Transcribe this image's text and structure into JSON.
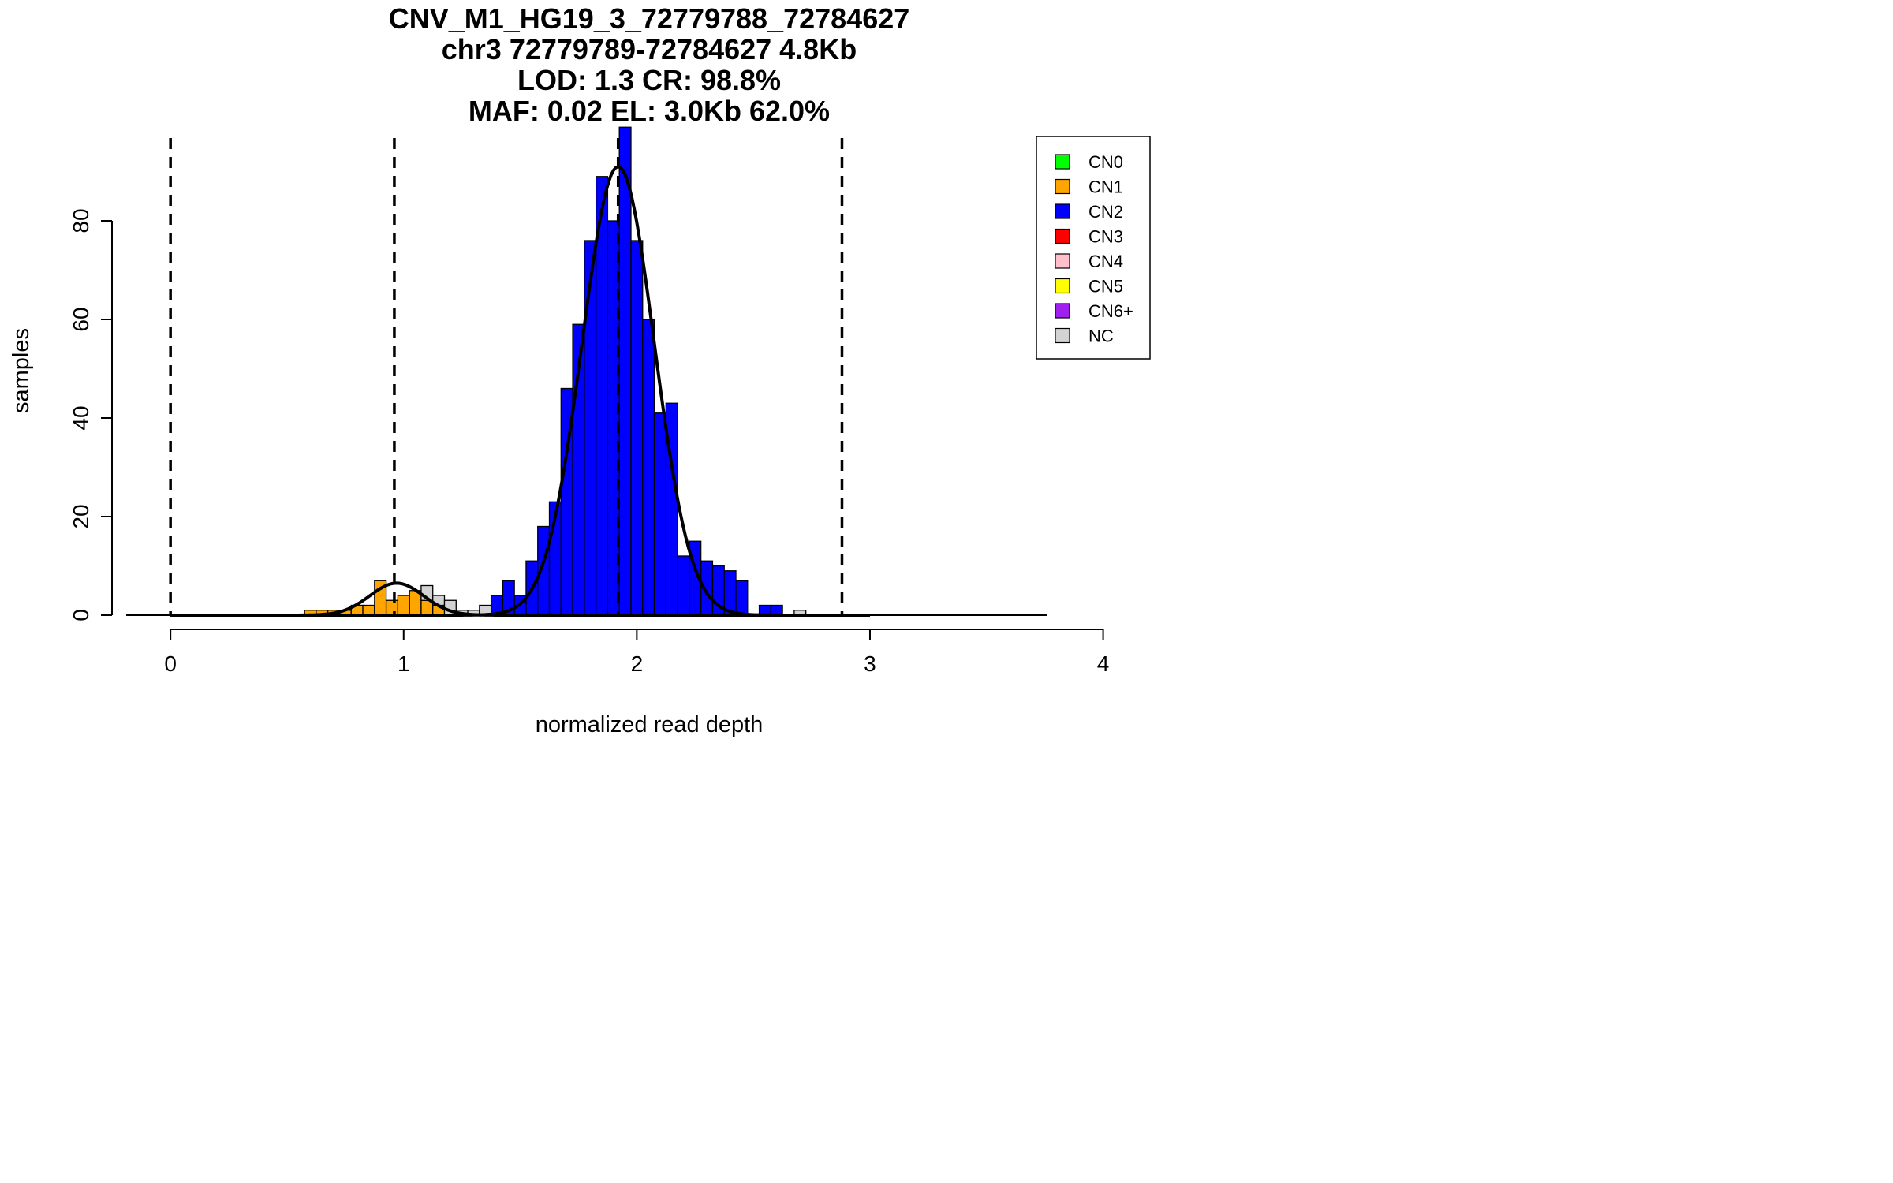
{
  "chart_data": {
    "type": "bar",
    "title_lines": [
      "CNV_M1_HG19_3_72779788_72784627",
      "chr3 72779789-72784627 4.8Kb",
      "LOD: 1.3 CR: 98.8%",
      "MAF: 0.02 EL: 3.0Kb 62.0%"
    ],
    "xlabel": "normalized read depth",
    "ylabel": "samples",
    "xlim": [
      -0.19,
      4.13
    ],
    "ylim": [
      0,
      100
    ],
    "x_ticks": [
      0,
      1,
      2,
      3,
      4
    ],
    "y_ticks": [
      0,
      20,
      40,
      60,
      80
    ],
    "bin_width": 0.05,
    "series": [
      {
        "name": "CN1",
        "color": "#FFA500",
        "bins": [
          {
            "x0": 0.575,
            "count": 1
          },
          {
            "x0": 0.625,
            "count": 1
          },
          {
            "x0": 0.675,
            "count": 1
          },
          {
            "x0": 0.725,
            "count": 1
          },
          {
            "x0": 0.775,
            "count": 2
          },
          {
            "x0": 0.825,
            "count": 2
          },
          {
            "x0": 0.875,
            "count": 7
          },
          {
            "x0": 0.925,
            "count": 3
          },
          {
            "x0": 0.975,
            "count": 4
          },
          {
            "x0": 1.025,
            "count": 5
          },
          {
            "x0": 1.075,
            "count": 3
          },
          {
            "x0": 1.125,
            "count": 2
          }
        ]
      },
      {
        "name": "CN2",
        "color": "#0000FF",
        "bins": [
          {
            "x0": 1.375,
            "count": 4
          },
          {
            "x0": 1.425,
            "count": 7
          },
          {
            "x0": 1.475,
            "count": 4
          },
          {
            "x0": 1.525,
            "count": 11
          },
          {
            "x0": 1.575,
            "count": 18
          },
          {
            "x0": 1.625,
            "count": 23
          },
          {
            "x0": 1.675,
            "count": 46
          },
          {
            "x0": 1.725,
            "count": 59
          },
          {
            "x0": 1.775,
            "count": 76
          },
          {
            "x0": 1.825,
            "count": 89
          },
          {
            "x0": 1.875,
            "count": 80
          },
          {
            "x0": 1.925,
            "count": 99
          },
          {
            "x0": 1.975,
            "count": 76
          },
          {
            "x0": 2.025,
            "count": 60
          },
          {
            "x0": 2.075,
            "count": 41
          },
          {
            "x0": 2.125,
            "count": 43
          },
          {
            "x0": 2.175,
            "count": 12
          },
          {
            "x0": 2.225,
            "count": 15
          },
          {
            "x0": 2.275,
            "count": 11
          },
          {
            "x0": 2.325,
            "count": 10
          },
          {
            "x0": 2.375,
            "count": 9
          },
          {
            "x0": 2.425,
            "count": 7
          },
          {
            "x0": 2.525,
            "count": 2
          },
          {
            "x0": 2.575,
            "count": 2
          }
        ]
      },
      {
        "name": "NC",
        "color": "#D3D3D3",
        "bins": [
          {
            "x0": 1.075,
            "base": 3,
            "count": 3
          },
          {
            "x0": 1.125,
            "base": 2,
            "count": 2
          },
          {
            "x0": 1.175,
            "count": 3
          },
          {
            "x0": 1.225,
            "count": 1
          },
          {
            "x0": 1.275,
            "count": 1
          },
          {
            "x0": 1.325,
            "count": 2
          },
          {
            "x0": 2.675,
            "count": 1
          }
        ]
      }
    ],
    "curves": [
      {
        "mean": 0.97,
        "sd": 0.115,
        "peak": 6.5
      },
      {
        "mean": 1.92,
        "sd": 0.155,
        "peak": 91
      }
    ],
    "baseline_segments": [
      [
        -0.19,
        0.22
      ],
      [
        0.45,
        0.58
      ],
      [
        2.62,
        3.76
      ]
    ],
    "vlines": [
      0,
      0.96,
      1.92,
      2.88
    ],
    "legend": {
      "position": "top-right",
      "entries": [
        {
          "label": "CN0",
          "color": "#00FF00"
        },
        {
          "label": "CN1",
          "color": "#FFA500"
        },
        {
          "label": "CN2",
          "color": "#0000FF"
        },
        {
          "label": "CN3",
          "color": "#FF0000"
        },
        {
          "label": "CN4",
          "color": "#FFC0CB"
        },
        {
          "label": "CN5",
          "color": "#FFFF00"
        },
        {
          "label": "CN6+",
          "color": "#A020F0"
        },
        {
          "label": "NC",
          "color": "#D3D3D3"
        }
      ]
    }
  }
}
